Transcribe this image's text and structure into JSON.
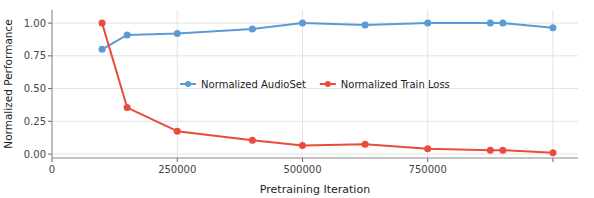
{
  "chart_data": {
    "type": "line",
    "x": [
      100000,
      150000,
      250000,
      400000,
      500000,
      625000,
      750000,
      875000,
      900000,
      1000000
    ],
    "series": [
      {
        "name": "Normalized AudioSet",
        "color": "#5B9BD5",
        "values": [
          0.8,
          0.91,
          0.92,
          0.955,
          1.0,
          0.985,
          1.0,
          1.0,
          1.0,
          0.965
        ]
      },
      {
        "name": "Normalized Train Loss",
        "color": "#E84C3D",
        "values": [
          1.0,
          0.355,
          0.175,
          0.105,
          0.065,
          0.075,
          0.04,
          0.03,
          0.03,
          0.01
        ]
      }
    ],
    "x_label": "Pretraining Iteration",
    "y_label": "Normalized Performance",
    "xlim": [
      0,
      1050000
    ],
    "ylim": [
      -0.03,
      1.1
    ],
    "xticks": [
      0,
      250000,
      500000,
      750000,
      {
        "value": 1000000,
        "label": null
      }
    ],
    "yticks": [
      {
        "value": 0.0,
        "label": "0.00"
      },
      0.25,
      {
        "value": 0.5,
        "label": "0.50"
      },
      0.75,
      {
        "value": 1.0,
        "label": "1.00"
      }
    ],
    "marker": "circle",
    "grid": true,
    "legend": "center"
  }
}
